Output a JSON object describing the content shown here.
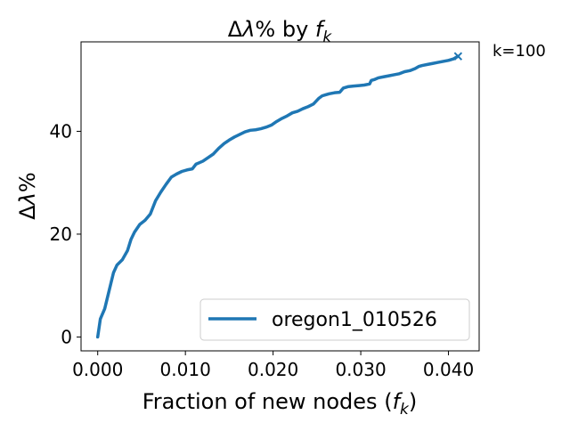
{
  "chart_data": {
    "type": "line",
    "title": {
      "prefix": "Δ",
      "lambda": "λ",
      "mid": "% by ",
      "f": "f",
      "sub": "k"
    },
    "xlabel": {
      "text": "Fraction of new nodes (",
      "f": "f",
      "sub": "k",
      "close": ")"
    },
    "ylabel": {
      "delta": "Δ",
      "lambda": "λ",
      "pct": "%"
    },
    "xlim": [
      -0.0019,
      0.0435
    ],
    "ylim": [
      -2.7,
      57.4
    ],
    "xticks": [
      {
        "value": 0.0,
        "label": "0.000"
      },
      {
        "value": 0.01,
        "label": "0.010"
      },
      {
        "value": 0.02,
        "label": "0.020"
      },
      {
        "value": 0.03,
        "label": "0.030"
      },
      {
        "value": 0.04,
        "label": "0.040"
      }
    ],
    "yticks": [
      {
        "value": 0,
        "label": "0"
      },
      {
        "value": 20,
        "label": "20"
      },
      {
        "value": 40,
        "label": "40"
      }
    ],
    "legend_position": "lower-right",
    "series": [
      {
        "name": "oregon1_010526",
        "color": "#1f77b4",
        "x": [
          0.0,
          0.0003,
          0.0008,
          0.0013,
          0.0018,
          0.0022,
          0.0028,
          0.0034,
          0.0038,
          0.0042,
          0.0048,
          0.0054,
          0.006,
          0.0066,
          0.0072,
          0.0078,
          0.0084,
          0.009,
          0.0096,
          0.0102,
          0.0108,
          0.0112,
          0.0116,
          0.012,
          0.0126,
          0.0132,
          0.0138,
          0.0144,
          0.015,
          0.0156,
          0.0162,
          0.0168,
          0.0174,
          0.018,
          0.0186,
          0.0192,
          0.0198,
          0.0204,
          0.021,
          0.0216,
          0.0222,
          0.0228,
          0.0234,
          0.024,
          0.0246,
          0.0252,
          0.0256,
          0.026,
          0.0264,
          0.027,
          0.0276,
          0.028,
          0.0286,
          0.0292,
          0.0298,
          0.0304,
          0.031,
          0.0312,
          0.0316,
          0.032,
          0.0326,
          0.0332,
          0.0338,
          0.0344,
          0.035,
          0.0356,
          0.0362,
          0.0366,
          0.037,
          0.0376,
          0.0382,
          0.0388,
          0.0394,
          0.04,
          0.0406,
          0.0411
        ],
        "y": [
          0.0,
          3.5,
          5.5,
          9.0,
          12.5,
          14.0,
          15.0,
          16.8,
          19.0,
          20.4,
          21.9,
          22.7,
          23.9,
          26.5,
          28.2,
          29.7,
          31.1,
          31.7,
          32.2,
          32.5,
          32.7,
          33.6,
          33.9,
          34.2,
          34.9,
          35.6,
          36.7,
          37.6,
          38.3,
          38.9,
          39.4,
          39.9,
          40.2,
          40.3,
          40.5,
          40.8,
          41.2,
          41.9,
          42.5,
          43.0,
          43.6,
          43.9,
          44.4,
          44.8,
          45.3,
          46.4,
          46.9,
          47.1,
          47.3,
          47.5,
          47.6,
          48.4,
          48.7,
          48.8,
          48.9,
          49.0,
          49.2,
          49.9,
          50.1,
          50.4,
          50.6,
          50.8,
          51.0,
          51.2,
          51.6,
          51.8,
          52.2,
          52.6,
          52.8,
          53.0,
          53.2,
          53.4,
          53.6,
          53.8,
          54.1,
          54.6
        ]
      }
    ],
    "endpoint_marker": {
      "x": 0.0411,
      "y": 54.6,
      "symbol": "×",
      "label": "k=100"
    }
  }
}
